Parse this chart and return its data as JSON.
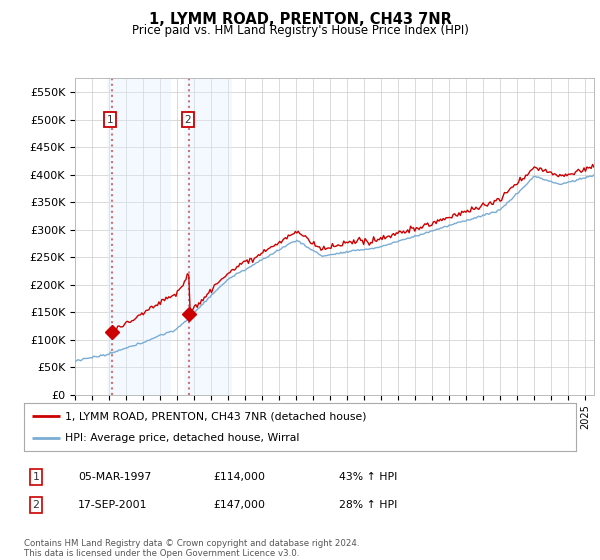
{
  "title": "1, LYMM ROAD, PRENTON, CH43 7NR",
  "subtitle": "Price paid vs. HM Land Registry's House Price Index (HPI)",
  "ylim": [
    0,
    575000
  ],
  "yticks": [
    0,
    50000,
    100000,
    150000,
    200000,
    250000,
    300000,
    350000,
    400000,
    450000,
    500000,
    550000
  ],
  "ytick_labels": [
    "£0",
    "£50K",
    "£100K",
    "£150K",
    "£200K",
    "£250K",
    "£300K",
    "£350K",
    "£400K",
    "£450K",
    "£500K",
    "£550K"
  ],
  "background_color": "#ffffff",
  "plot_bg_color": "#ffffff",
  "grid_color": "#cccccc",
  "red_line_color": "#cc0000",
  "blue_line_color": "#7aadd4",
  "sale1_date": 1997.17,
  "sale1_price": 114000,
  "sale2_date": 2001.72,
  "sale2_price": 147000,
  "legend_label_red": "1, LYMM ROAD, PRENTON, CH43 7NR (detached house)",
  "legend_label_blue": "HPI: Average price, detached house, Wirral",
  "table_row1": [
    "1",
    "05-MAR-1997",
    "£114,000",
    "43% ↑ HPI"
  ],
  "table_row2": [
    "2",
    "17-SEP-2001",
    "£147,000",
    "28% ↑ HPI"
  ],
  "footer": "Contains HM Land Registry data © Crown copyright and database right 2024.\nThis data is licensed under the Open Government Licence v3.0.",
  "xmin": 1995,
  "xmax": 2025.5
}
